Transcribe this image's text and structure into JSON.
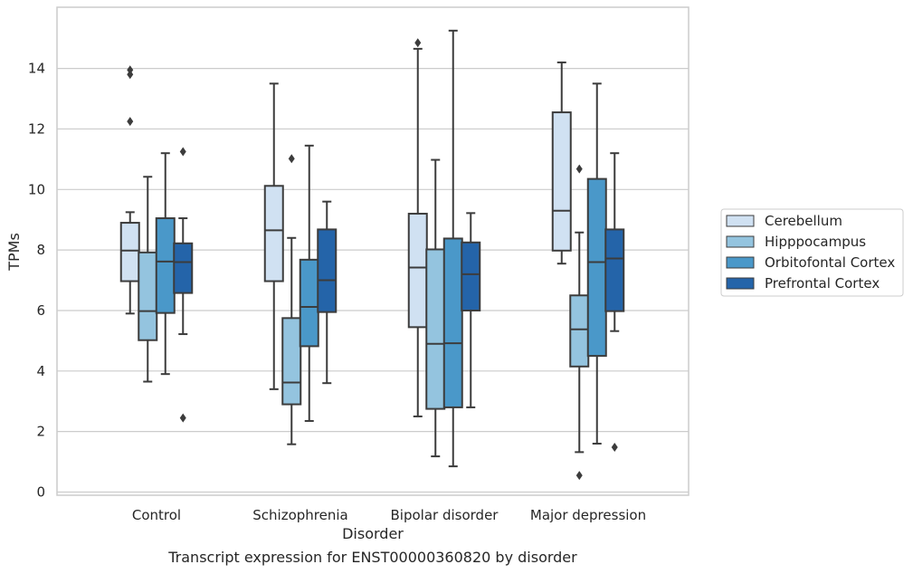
{
  "caption": "Transcript expression for ENST00000360820 by disorder",
  "chart_data": {
    "type": "box",
    "xlabel": "Disorder",
    "ylabel": "TPMs",
    "ylim": [
      -0.1,
      16.0
    ],
    "yticks": [
      0,
      2,
      4,
      6,
      8,
      10,
      12,
      14
    ],
    "grid": "horizontal",
    "legend_position": "right",
    "categories": [
      "Control",
      "Schizophrenia",
      "Bipolar disorder",
      "Major depression"
    ],
    "series": [
      {
        "name": "Cerebellum",
        "color": "#d0e1f2",
        "boxes": [
          {
            "whisker_low": 5.9,
            "q1": 6.97,
            "median": 7.98,
            "q3": 8.9,
            "whisker_high": 9.25,
            "outliers": [
              12.25,
              13.8,
              13.95
            ]
          },
          {
            "whisker_low": 3.4,
            "q1": 6.97,
            "median": 8.65,
            "q3": 10.12,
            "whisker_high": 13.5,
            "outliers": []
          },
          {
            "whisker_low": 2.5,
            "q1": 5.45,
            "median": 7.42,
            "q3": 9.2,
            "whisker_high": 14.65,
            "outliers": [
              14.85
            ]
          },
          {
            "whisker_low": 7.55,
            "q1": 7.98,
            "median": 9.3,
            "q3": 12.55,
            "whisker_high": 14.2,
            "outliers": []
          }
        ]
      },
      {
        "name": "Hipppocampus",
        "color": "#94c4df",
        "boxes": [
          {
            "whisker_low": 3.65,
            "q1": 5.02,
            "median": 5.98,
            "q3": 7.92,
            "whisker_high": 10.42,
            "outliers": []
          },
          {
            "whisker_low": 1.58,
            "q1": 2.9,
            "median": 3.62,
            "q3": 5.75,
            "whisker_high": 8.4,
            "outliers": [
              11.02
            ]
          },
          {
            "whisker_low": 1.18,
            "q1": 2.75,
            "median": 4.9,
            "q3": 8.02,
            "whisker_high": 10.98,
            "outliers": []
          },
          {
            "whisker_low": 1.32,
            "q1": 4.15,
            "median": 5.38,
            "q3": 6.5,
            "whisker_high": 8.58,
            "outliers": [
              0.55,
              10.68
            ]
          }
        ]
      },
      {
        "name": "Orbitofontal Cortex",
        "color": "#4a98c9",
        "boxes": [
          {
            "whisker_low": 3.9,
            "q1": 5.92,
            "median": 7.62,
            "q3": 9.05,
            "whisker_high": 11.2,
            "outliers": []
          },
          {
            "whisker_low": 2.35,
            "q1": 4.82,
            "median": 6.12,
            "q3": 7.68,
            "whisker_high": 11.45,
            "outliers": []
          },
          {
            "whisker_low": 0.85,
            "q1": 2.8,
            "median": 4.92,
            "q3": 8.38,
            "whisker_high": 15.25,
            "outliers": []
          },
          {
            "whisker_low": 1.6,
            "q1": 4.5,
            "median": 7.6,
            "q3": 10.35,
            "whisker_high": 13.5,
            "outliers": []
          }
        ]
      },
      {
        "name": "Prefrontal Cortex",
        "color": "#2464a9",
        "boxes": [
          {
            "whisker_low": 5.22,
            "q1": 6.58,
            "median": 7.6,
            "q3": 8.22,
            "whisker_high": 9.05,
            "outliers": [
              2.45,
              11.25
            ]
          },
          {
            "whisker_low": 3.6,
            "q1": 5.95,
            "median": 7.0,
            "q3": 8.68,
            "whisker_high": 9.6,
            "outliers": []
          },
          {
            "whisker_low": 2.8,
            "q1": 6.0,
            "median": 7.2,
            "q3": 8.25,
            "whisker_high": 9.22,
            "outliers": []
          },
          {
            "whisker_low": 5.32,
            "q1": 5.98,
            "median": 7.72,
            "q3": 8.68,
            "whisker_high": 11.2,
            "outliers": [
              1.48
            ]
          }
        ]
      }
    ]
  }
}
